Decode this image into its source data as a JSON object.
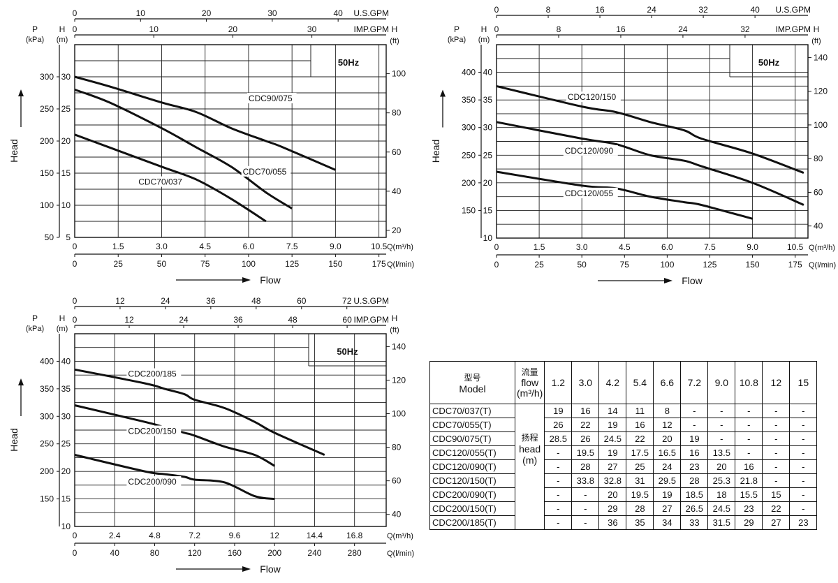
{
  "charts": [
    {
      "type": "line",
      "frequency_label": "50Hz",
      "top_axes": [
        {
          "label": "U.S.GPM",
          "ticks": [
            "0",
            "10",
            "20",
            "30",
            "40"
          ],
          "max": 47.3
        },
        {
          "label": "IMP.GPM",
          "ticks": [
            "0",
            "10",
            "20",
            "30"
          ],
          "max": 39.4
        }
      ],
      "y_axis": {
        "label": "H",
        "unit": "(m)",
        "min": 5,
        "max": 35,
        "ticks": [
          "5",
          "10",
          "15",
          "20",
          "25",
          "30"
        ],
        "tick_values": [
          5,
          10,
          15,
          20,
          25,
          30
        ]
      },
      "p_axis": {
        "label": "P",
        "unit": "(kPa)",
        "ticks": [
          "50",
          "100",
          "150",
          "200",
          "250",
          "300"
        ],
        "tick_values": [
          5,
          10,
          15,
          20,
          25,
          30
        ]
      },
      "ft_axis": {
        "label": "H",
        "unit": "(ft)",
        "ticks": [
          "20",
          "40",
          "60",
          "80",
          "100"
        ],
        "tick_values": [
          20,
          40,
          60,
          80,
          100
        ]
      },
      "x_axis": {
        "label": "Q(m³/h)",
        "min": 0,
        "max": 10.75,
        "ticks": [
          "0",
          "1.5",
          "3.0",
          "4.5",
          "6.0",
          "7.5",
          "9.0",
          "10.5"
        ],
        "tick_values": [
          0,
          1.5,
          3.0,
          4.5,
          6.0,
          7.5,
          9.0,
          10.5
        ]
      },
      "x2_axis": {
        "label": "Q(l/min)",
        "ticks": [
          "0",
          "25",
          "50",
          "75",
          "100",
          "125",
          "150",
          "175"
        ],
        "tick_values": [
          0,
          1.5,
          3.0,
          4.5,
          6.0,
          7.5,
          9.0,
          10.5
        ]
      },
      "side_label": "Head",
      "bottom_label": "Flow",
      "series": [
        {
          "name": "CDC90/075",
          "x": [
            0,
            1.2,
            3.0,
            4.2,
            5.4,
            6.6,
            7.2,
            9.0
          ],
          "y": [
            30,
            28.5,
            26,
            24.5,
            22,
            20,
            19,
            15.5
          ],
          "label_at": [
            6.0,
            26.2
          ]
        },
        {
          "name": "CDC70/055",
          "x": [
            0,
            1.2,
            3.0,
            4.2,
            5.4,
            6.6,
            7.5
          ],
          "y": [
            28,
            26,
            22,
            19,
            16,
            12,
            9.5
          ],
          "label_at": [
            5.8,
            14.8
          ]
        },
        {
          "name": "CDC70/037",
          "x": [
            0,
            1.2,
            3.0,
            4.2,
            5.4,
            6.6
          ],
          "y": [
            21,
            19,
            16,
            14,
            11,
            7.5
          ],
          "label_at": [
            2.2,
            13.2
          ]
        }
      ]
    },
    {
      "type": "line",
      "frequency_label": "50Hz",
      "top_axes": [
        {
          "label": "U.S.GPM",
          "ticks": [
            "0",
            "8",
            "16",
            "24",
            "32",
            "40"
          ],
          "max": 48.2
        },
        {
          "label": "IMP.GPM",
          "ticks": [
            "0",
            "8",
            "16",
            "24",
            "32"
          ],
          "max": 40.1
        }
      ],
      "y_axis": {
        "label": "H",
        "unit": "(m)",
        "min": 10,
        "max": 45,
        "ticks": [
          "10",
          "15",
          "20",
          "25",
          "30",
          "35",
          "40"
        ],
        "tick_values": [
          10,
          15,
          20,
          25,
          30,
          35,
          40
        ]
      },
      "p_axis": {
        "label": "P",
        "unit": "(kPa)",
        "ticks": [
          "150",
          "200",
          "250",
          "300",
          "350",
          "400"
        ],
        "tick_values": [
          15,
          20,
          25,
          30,
          35,
          40
        ]
      },
      "ft_axis": {
        "label": "H",
        "unit": "(ft)",
        "ticks": [
          "40",
          "60",
          "80",
          "100",
          "120",
          "140"
        ],
        "tick_values": [
          40,
          60,
          80,
          100,
          120,
          140
        ]
      },
      "x_axis": {
        "label": "Q(m³/h)",
        "min": 0,
        "max": 10.95,
        "ticks": [
          "0",
          "1.5",
          "3.0",
          "4.5",
          "6.0",
          "7.5",
          "9.0",
          "10.5"
        ],
        "tick_values": [
          0,
          1.5,
          3.0,
          4.5,
          6.0,
          7.5,
          9.0,
          10.5
        ]
      },
      "x2_axis": {
        "label": "Q(l/min)",
        "ticks": [
          "0",
          "25",
          "50",
          "75",
          "100",
          "125",
          "150",
          "175"
        ],
        "tick_values": [
          0,
          1.5,
          3.0,
          4.5,
          6.0,
          7.5,
          9.0,
          10.5
        ]
      },
      "side_label": "Head",
      "bottom_label": "Flow",
      "series": [
        {
          "name": "CDC120/150",
          "x": [
            0,
            3.0,
            4.2,
            5.4,
            6.6,
            7.2,
            9.0,
            10.8
          ],
          "y": [
            37.5,
            33.8,
            32.8,
            31,
            29.5,
            28,
            25.3,
            21.8
          ],
          "label_at": [
            2.5,
            35.0
          ]
        },
        {
          "name": "CDC120/090",
          "x": [
            0,
            3.0,
            4.2,
            5.4,
            6.6,
            7.2,
            9.0,
            10.8
          ],
          "y": [
            31,
            28,
            27,
            25,
            24,
            23,
            20,
            16
          ],
          "label_at": [
            2.4,
            25.3
          ]
        },
        {
          "name": "CDC120/055",
          "x": [
            0,
            3.0,
            4.2,
            5.4,
            6.6,
            7.2,
            9.0
          ],
          "y": [
            22,
            19.5,
            19,
            17.5,
            16.5,
            16,
            13.5
          ],
          "label_at": [
            2.4,
            17.6
          ]
        }
      ]
    },
    {
      "type": "line",
      "frequency_label": "50Hz",
      "top_axes": [
        {
          "label": "U.S.GPM",
          "ticks": [
            "0",
            "12",
            "24",
            "36",
            "48",
            "60",
            "72"
          ],
          "max": 82.4
        },
        {
          "label": "IMP.GPM",
          "ticks": [
            "0",
            "12",
            "24",
            "36",
            "48",
            "60"
          ],
          "max": 68.6
        }
      ],
      "y_axis": {
        "label": "H",
        "unit": "(m)",
        "min": 10,
        "max": 45,
        "ticks": [
          "10",
          "15",
          "20",
          "25",
          "30",
          "35",
          "40"
        ],
        "tick_values": [
          10,
          15,
          20,
          25,
          30,
          35,
          40
        ]
      },
      "p_axis": {
        "label": "P",
        "unit": "(kPa)",
        "ticks": [
          "150",
          "200",
          "250",
          "300",
          "350",
          "400"
        ],
        "tick_values": [
          15,
          20,
          25,
          30,
          35,
          40
        ]
      },
      "ft_axis": {
        "label": "H",
        "unit": "(ft)",
        "ticks": [
          "40",
          "60",
          "80",
          "100",
          "120",
          "140"
        ],
        "tick_values": [
          40,
          60,
          80,
          100,
          120,
          140
        ]
      },
      "x_axis": {
        "label": "Q(m³/h)",
        "min": 0,
        "max": 18.7,
        "ticks": [
          "0",
          "2.4",
          "4.8",
          "7.2",
          "9.6",
          "12",
          "14.4",
          "16.8"
        ],
        "tick_values": [
          0,
          2.4,
          4.8,
          7.2,
          9.6,
          12,
          14.4,
          16.8
        ]
      },
      "x2_axis": {
        "label": "Q(l/min)",
        "ticks": [
          "0",
          "40",
          "80",
          "120",
          "160",
          "200",
          "240",
          "280"
        ],
        "tick_values": [
          0,
          2.4,
          4.8,
          7.2,
          9.6,
          12,
          14.4,
          16.8
        ]
      },
      "side_label": "Head",
      "bottom_label": "Flow",
      "series": [
        {
          "name": "CDC200/185",
          "x": [
            0,
            4.2,
            5.4,
            6.6,
            7.2,
            9.0,
            10.8,
            12,
            15
          ],
          "y": [
            38.5,
            36,
            35,
            34,
            33,
            31.5,
            29,
            27,
            23
          ],
          "label_at": [
            3.2,
            37.2
          ]
        },
        {
          "name": "CDC200/150",
          "x": [
            0,
            4.2,
            5.4,
            6.6,
            7.2,
            9.0,
            10.8,
            12
          ],
          "y": [
            32,
            29,
            28,
            27,
            26.5,
            24.5,
            23,
            21
          ],
          "label_at": [
            3.2,
            26.8
          ]
        },
        {
          "name": "CDC200/090",
          "x": [
            0,
            4.2,
            5.4,
            6.6,
            7.2,
            9.0,
            10.8,
            12
          ],
          "y": [
            23,
            20,
            19.5,
            19,
            18.5,
            18,
            15.5,
            15
          ],
          "label_at": [
            3.2,
            17.6
          ]
        }
      ]
    }
  ],
  "table": {
    "model_header_cn": "型号",
    "model_header_en": "Model",
    "flow_header_cn": "流量",
    "flow_header_en": "flow",
    "flow_header_unit": "(m³/h)",
    "head_cn": "扬程",
    "head_en": "head",
    "head_unit": "(m)",
    "flows": [
      "1.2",
      "3.0",
      "4.2",
      "5.4",
      "6.6",
      "7.2",
      "9.0",
      "10.8",
      "12",
      "15"
    ],
    "rows": [
      {
        "model": "CDC70/037(T)",
        "values": [
          "19",
          "16",
          "14",
          "11",
          "8",
          "-",
          "-",
          "-",
          "-",
          "-"
        ]
      },
      {
        "model": "CDC70/055(T)",
        "values": [
          "26",
          "22",
          "19",
          "16",
          "12",
          "-",
          "-",
          "-",
          "-",
          "-"
        ]
      },
      {
        "model": "CDC90/075(T)",
        "values": [
          "28.5",
          "26",
          "24.5",
          "22",
          "20",
          "19",
          "-",
          "-",
          "-",
          "-"
        ]
      },
      {
        "model": "CDC120/055(T)",
        "values": [
          "-",
          "19.5",
          "19",
          "17.5",
          "16.5",
          "16",
          "13.5",
          "-",
          "-",
          "-"
        ]
      },
      {
        "model": "CDC120/090(T)",
        "values": [
          "-",
          "28",
          "27",
          "25",
          "24",
          "23",
          "20",
          "16",
          "-",
          "-"
        ]
      },
      {
        "model": "CDC120/150(T)",
        "values": [
          "-",
          "33.8",
          "32.8",
          "31",
          "29.5",
          "28",
          "25.3",
          "21.8",
          "-",
          "-"
        ]
      },
      {
        "model": "CDC200/090(T)",
        "values": [
          "-",
          "-",
          "20",
          "19.5",
          "19",
          "18.5",
          "18",
          "15.5",
          "15",
          "-"
        ]
      },
      {
        "model": "CDC200/150(T)",
        "values": [
          "-",
          "-",
          "29",
          "28",
          "27",
          "26.5",
          "24.5",
          "23",
          "22",
          "-"
        ]
      },
      {
        "model": "CDC200/185(T)",
        "values": [
          "-",
          "-",
          "36",
          "35",
          "34",
          "33",
          "31.5",
          "29",
          "27",
          "23"
        ]
      }
    ]
  }
}
